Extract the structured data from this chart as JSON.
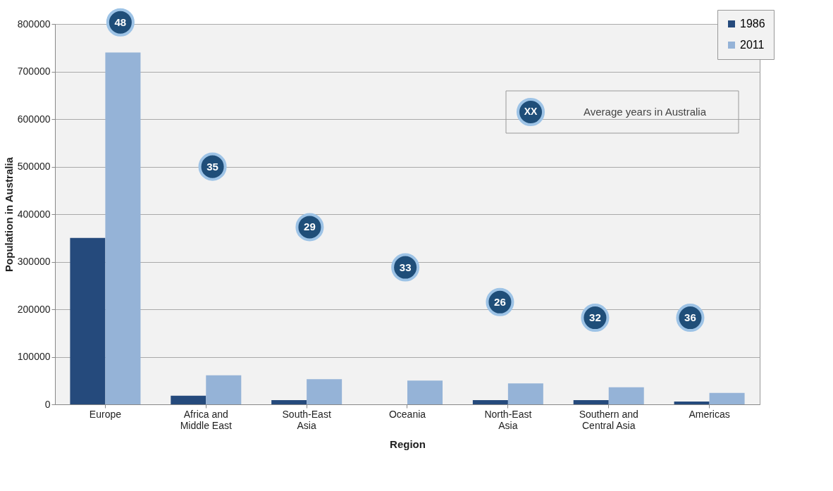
{
  "chart_data": {
    "type": "bar",
    "xlabel": "Region",
    "ylabel": "Population in Australia",
    "categories": [
      "Europe",
      "Africa and Middle East",
      "South-East Asia",
      "Oceania",
      "North-East Asia",
      "Southern and Central Asia",
      "Americas"
    ],
    "series": [
      {
        "name": "1986",
        "color": "#254a7c",
        "values": [
          350000,
          18000,
          9000,
          null,
          9000,
          9000,
          6000
        ]
      },
      {
        "name": "2011",
        "color": "#95b3d7",
        "values": [
          740000,
          61000,
          53000,
          50000,
          44000,
          36000,
          24000
        ]
      }
    ],
    "ylim": [
      0,
      800000
    ],
    "yticks": [
      0,
      100000,
      200000,
      300000,
      400000,
      500000,
      600000,
      700000,
      800000
    ],
    "grid": "y",
    "legend": "top right",
    "annotations": [
      "48",
      "35",
      "29",
      "33",
      "26",
      "32",
      "36",
      "XX",
      "Average years in Australia"
    ]
  }
}
